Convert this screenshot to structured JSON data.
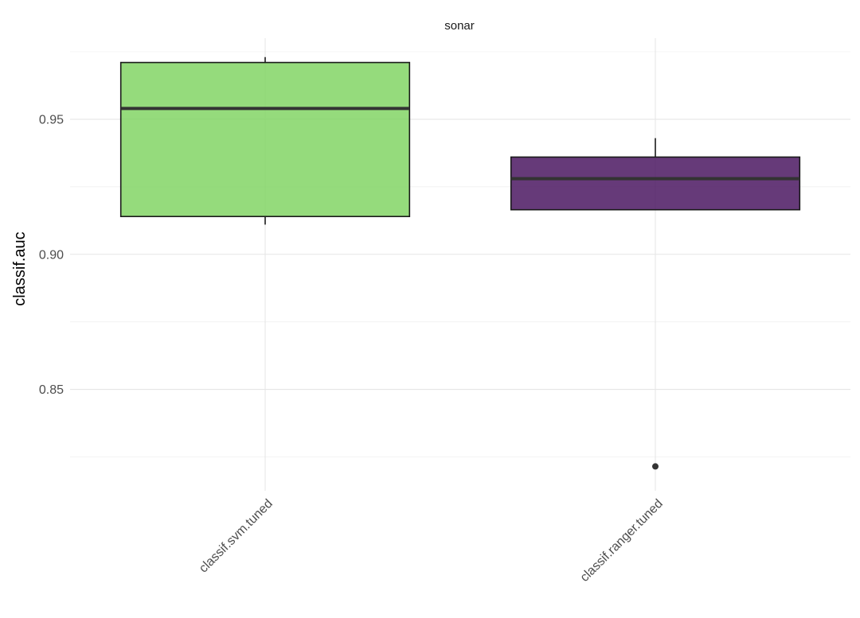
{
  "chart_data": {
    "type": "boxplot",
    "facet": "sonar",
    "ylabel": "classif.auc",
    "xlabel": "",
    "ylim": [
      0.8125,
      0.98
    ],
    "yticks": [
      0.85,
      0.9,
      0.95
    ],
    "grid": true,
    "categories": [
      "classif.svm.tuned",
      "classif.ranger.tuned"
    ],
    "boxes": [
      {
        "name": "classif.svm.tuned",
        "whisker_low": 0.911,
        "q1": 0.914,
        "median": 0.954,
        "q3": 0.971,
        "whisker_high": 0.973,
        "outliers": [],
        "color": "#7ed35f"
      },
      {
        "name": "classif.ranger.tuned",
        "whisker_low": 0.9165,
        "q1": 0.9165,
        "median": 0.928,
        "q3": 0.936,
        "whisker_high": 0.943,
        "outliers": [
          0.8215
        ],
        "color": "#440f5c"
      }
    ]
  }
}
